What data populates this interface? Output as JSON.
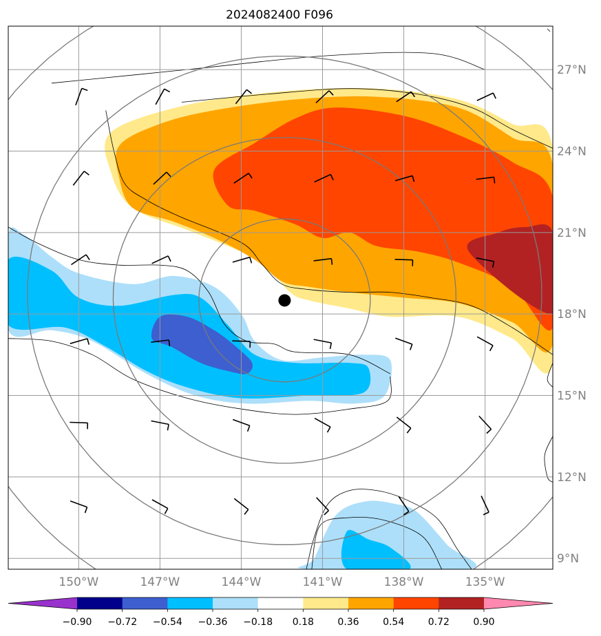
{
  "title": "2024082400 F096",
  "chart_data": {
    "type": "contourf-map",
    "title": "2024082400 F096",
    "lon_labels": [
      "150°W",
      "147°W",
      "144°W",
      "141°W",
      "138°W",
      "135°W"
    ],
    "lat_labels": [
      "27°N",
      "24°N",
      "21°N",
      "18°N",
      "15°N",
      "12°N",
      "9°N"
    ],
    "lon_ticks": [
      -150,
      -147,
      -144,
      -141,
      -138,
      -135
    ],
    "lat_ticks": [
      27,
      24,
      21,
      18,
      15,
      12,
      9
    ],
    "extent": {
      "lon_min": -152.6,
      "lon_max": -132.5,
      "lat_min": 8.6,
      "lat_max": 28.6
    },
    "grid": true,
    "storm_center": {
      "lon": -142.4,
      "lat": 18.5
    },
    "range_rings_deg": [
      3,
      6,
      9,
      12
    ],
    "colorbar": {
      "levels": [
        -0.9,
        -0.72,
        -0.54,
        -0.36,
        -0.18,
        0.18,
        0.36,
        0.54,
        0.72,
        0.9
      ],
      "tick_labels": [
        "−0.90",
        "−0.72",
        "−0.54",
        "−0.36",
        "−0.18",
        "0.18",
        "0.36",
        "0.54",
        "0.72",
        "0.90"
      ],
      "colors": [
        "#9932CC",
        "#00008B",
        "#3D5FCF",
        "#00BFFF",
        "#ADDFFA",
        "#FFFFFF",
        "#FFE98A",
        "#FFA500",
        "#FF4500",
        "#B22222",
        "#FF88B0"
      ],
      "extend": "both"
    },
    "contour_regions": [
      {
        "level": "0.18 to 0.36",
        "color": "#FFE98A",
        "lonlat": [
          [
            -148.8,
            24.7
          ],
          [
            -146,
            25.7
          ],
          [
            -142.5,
            26.2
          ],
          [
            -139,
            26.3
          ],
          [
            -136,
            25.9
          ],
          [
            -134,
            25
          ],
          [
            -132.5,
            24.1
          ],
          [
            -132.5,
            16.2
          ],
          [
            -134,
            17.1
          ],
          [
            -136,
            17.9
          ],
          [
            -138.5,
            17.9
          ],
          [
            -140,
            18.2
          ],
          [
            -141.5,
            18.5
          ],
          [
            -142.2,
            18.8
          ],
          [
            -143.2,
            19.9
          ],
          [
            -144.5,
            20.5
          ],
          [
            -146,
            21.1
          ],
          [
            -148,
            21.9
          ],
          [
            -148.8,
            23.2
          ]
        ]
      },
      {
        "level": "0.36 to 0.54",
        "color": "#FFA500",
        "lonlat": [
          [
            -148.5,
            24.2
          ],
          [
            -147,
            25
          ],
          [
            -145,
            25.5
          ],
          [
            -142,
            25.9
          ],
          [
            -139,
            26
          ],
          [
            -136,
            25.6
          ],
          [
            -134,
            24.5
          ],
          [
            -132.5,
            23.5
          ],
          [
            -132.5,
            16.9
          ],
          [
            -134,
            17.7
          ],
          [
            -136,
            18.4
          ],
          [
            -138,
            18.6
          ],
          [
            -140,
            18.8
          ],
          [
            -141.5,
            19
          ],
          [
            -142.5,
            19.2
          ],
          [
            -143.5,
            20
          ],
          [
            -145,
            20.8
          ],
          [
            -146.5,
            21.4
          ],
          [
            -148,
            21.9
          ],
          [
            -148.5,
            23
          ]
        ]
      },
      {
        "level": "0.54 to 0.72",
        "color": "#FF4500",
        "lonlat": [
          [
            -145,
            23.3
          ],
          [
            -143.5,
            24.3
          ],
          [
            -142,
            25.2
          ],
          [
            -140.5,
            25.6
          ],
          [
            -138,
            25.3
          ],
          [
            -136,
            24.6
          ],
          [
            -134,
            23.6
          ],
          [
            -132.5,
            22.3
          ],
          [
            -132.5,
            17.5
          ],
          [
            -134,
            19
          ],
          [
            -136,
            19.9
          ],
          [
            -137.5,
            20.3
          ],
          [
            -139,
            20.5
          ],
          [
            -140,
            21
          ],
          [
            -141,
            20.8
          ],
          [
            -142,
            21.3
          ],
          [
            -143.5,
            21.8
          ],
          [
            -144.5,
            22
          ]
        ]
      },
      {
        "level": "0.72 to 0.90",
        "color": "#B22222",
        "lonlat": [
          [
            -135.6,
            20.3
          ],
          [
            -134.5,
            21
          ],
          [
            -133.5,
            21.2
          ],
          [
            -132.5,
            21
          ],
          [
            -132.5,
            18
          ]
        ]
      },
      {
        "level": "-0.36 to -0.18",
        "color": "#ADDFFA",
        "lonlat": [
          [
            -152.6,
            20.9
          ],
          [
            -152,
            20.9
          ],
          [
            -151,
            20.1
          ],
          [
            -150,
            19.5
          ],
          [
            -148,
            19.1
          ],
          [
            -146.5,
            19.4
          ],
          [
            -145,
            19
          ],
          [
            -144,
            18
          ],
          [
            -143.5,
            17
          ],
          [
            -142.5,
            16.3
          ],
          [
            -141,
            16.4
          ],
          [
            -139.5,
            16.5
          ],
          [
            -138.5,
            16.3
          ],
          [
            -138.7,
            15
          ],
          [
            -139.8,
            14.7
          ],
          [
            -141.5,
            14.8
          ],
          [
            -143.8,
            14.7
          ],
          [
            -145.7,
            15
          ],
          [
            -147.5,
            15.8
          ],
          [
            -149.5,
            17
          ],
          [
            -151,
            17.4
          ],
          [
            -152.6,
            17.4
          ]
        ]
      },
      {
        "level": "-0.54 to -0.36",
        "color": "#00BFFF",
        "lonlat": [
          [
            -152.6,
            20
          ],
          [
            -151,
            19.6
          ],
          [
            -150,
            18.6
          ],
          [
            -148.5,
            18.3
          ],
          [
            -146.5,
            18.7
          ],
          [
            -145.5,
            18.6
          ],
          [
            -144.5,
            17.6
          ],
          [
            -143.5,
            16.5
          ],
          [
            -142,
            16.2
          ],
          [
            -140,
            16.2
          ],
          [
            -139.3,
            16
          ],
          [
            -139.5,
            15.1
          ],
          [
            -141.5,
            15
          ],
          [
            -144,
            14.9
          ],
          [
            -146,
            15.3
          ],
          [
            -147.5,
            15.9
          ],
          [
            -149,
            16.8
          ],
          [
            -150.5,
            17.5
          ],
          [
            -152.6,
            17.6
          ]
        ]
      },
      {
        "level": "-0.72 to -0.54",
        "color": "#3D5FCF",
        "lonlat": [
          [
            -147,
            17.9
          ],
          [
            -146,
            17.9
          ],
          [
            -145,
            17.4
          ],
          [
            -144.2,
            16.8
          ],
          [
            -143.6,
            16.2
          ],
          [
            -143.8,
            15.8
          ],
          [
            -144.5,
            15.9
          ],
          [
            -145.5,
            16.2
          ],
          [
            -146.6,
            16.8
          ],
          [
            -147.3,
            17.1
          ]
        ]
      },
      {
        "level": "-0.36 to -0.18",
        "color": "#ADDFFA",
        "lonlat": [
          [
            -141.3,
            9
          ],
          [
            -140.5,
            10.6
          ],
          [
            -139.4,
            11.1
          ],
          [
            -138.3,
            11
          ],
          [
            -137.5,
            10.7
          ],
          [
            -136.4,
            9.5
          ],
          [
            -135.6,
            8.6
          ],
          [
            -141.5,
            8.6
          ]
        ]
      },
      {
        "level": "-0.54 to -0.36",
        "color": "#00BFFF",
        "lonlat": [
          [
            -140.1,
            10
          ],
          [
            -139.3,
            9.7
          ],
          [
            -138.5,
            9.4
          ],
          [
            -137.8,
            8.6
          ],
          [
            -140.1,
            8.6
          ]
        ]
      }
    ],
    "contour_lines": [
      [
        [
          -151,
          26.5
        ],
        [
          -146,
          27
        ],
        [
          -141,
          27.5
        ],
        [
          -137,
          27.6
        ],
        [
          -135,
          27
        ]
      ],
      [
        [
          -149,
          25.5
        ],
        [
          -148.7,
          24
        ],
        [
          -148.3,
          22.8
        ],
        [
          -147.5,
          22.2
        ],
        [
          -146.3,
          21.6
        ],
        [
          -144.8,
          21
        ],
        [
          -143.8,
          20.5
        ],
        [
          -143.2,
          19.8
        ],
        [
          -142.5,
          19.1
        ],
        [
          -141.5,
          18.9
        ],
        [
          -140,
          18.8
        ],
        [
          -138.5,
          18.8
        ],
        [
          -137,
          18.6
        ],
        [
          -135.5,
          18.3
        ],
        [
          -134,
          17.5
        ],
        [
          -132.5,
          16.5
        ]
      ],
      [
        [
          -146.2,
          25.8
        ],
        [
          -143,
          26.1
        ],
        [
          -140,
          26.3
        ],
        [
          -137.5,
          26.1
        ],
        [
          -135.5,
          25.6
        ],
        [
          -134,
          24.8
        ],
        [
          -132.5,
          24.1
        ]
      ],
      [
        [
          -152.6,
          21.2
        ],
        [
          -151.5,
          20.6
        ],
        [
          -150,
          20
        ],
        [
          -148.5,
          19.8
        ],
        [
          -147,
          19.8
        ],
        [
          -146,
          19.6
        ],
        [
          -145.2,
          18.8
        ],
        [
          -144.6,
          17.6
        ],
        [
          -143.8,
          17
        ],
        [
          -142.8,
          16.9
        ],
        [
          -142,
          16.6
        ],
        [
          -140,
          16.5
        ],
        [
          -138.5,
          15.8
        ]
      ],
      [
        [
          -152.6,
          17.1
        ],
        [
          -151,
          17
        ],
        [
          -149.5,
          16.5
        ],
        [
          -148,
          15.6
        ],
        [
          -146,
          14.9
        ],
        [
          -144,
          14.5
        ],
        [
          -142,
          14.3
        ],
        [
          -140,
          14.5
        ],
        [
          -138.6,
          14.8
        ],
        [
          -138.5,
          15.7
        ]
      ],
      [
        [
          -141.6,
          8.6
        ],
        [
          -141.3,
          9.8
        ],
        [
          -140.8,
          11
        ],
        [
          -140,
          11.5
        ],
        [
          -139,
          11.5
        ],
        [
          -138,
          11.2
        ],
        [
          -136.8,
          10.5
        ],
        [
          -136,
          9.3
        ],
        [
          -135.5,
          8.6
        ]
      ],
      [
        [
          -141.4,
          8.6
        ],
        [
          -141.1,
          10.2
        ],
        [
          -140,
          10.5
        ],
        [
          -138.7,
          10.4
        ],
        [
          -137.3,
          9.8
        ],
        [
          -136.6,
          8.6
        ]
      ],
      [
        [
          -132.7,
          28.5
        ],
        [
          -132.6,
          28.4
        ]
      ],
      [
        [
          -132.5,
          16.2
        ],
        [
          -132.7,
          15.6
        ],
        [
          -132.5,
          15.3
        ]
      ],
      [
        [
          -132.5,
          13.5
        ],
        [
          -132.8,
          12.8
        ],
        [
          -132.7,
          12
        ],
        [
          -132.5,
          11.8
        ]
      ]
    ],
    "wind_barbs_lon": [
      -150,
      -147,
      -144,
      -141,
      -138,
      -135
    ],
    "wind_barbs_lat": [
      26,
      23,
      20,
      17,
      14,
      11
    ]
  }
}
